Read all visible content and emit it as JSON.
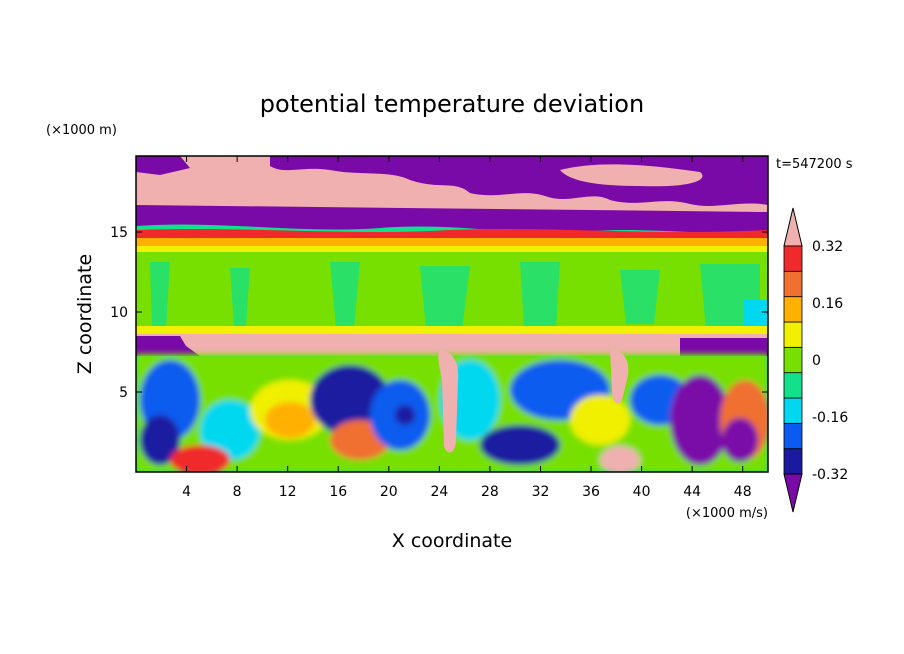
{
  "chart_data": {
    "type": "heatmap",
    "title": "potential temperature deviation",
    "xlabel": "X coordinate",
    "ylabel": "Z coordinate",
    "x_unit": "(×1000 m/s)",
    "y_unit": "(×1000 m)",
    "time_label": "t=547200 s",
    "xlim": [
      0,
      50
    ],
    "ylim": [
      0,
      19.75
    ],
    "x_ticks": [
      4,
      8,
      12,
      16,
      20,
      24,
      28,
      32,
      36,
      40,
      44,
      48
    ],
    "y_ticks": [
      5,
      10,
      15
    ],
    "colorbar": {
      "levels": [
        -0.4,
        -0.32,
        -0.24,
        -0.16,
        -0.08,
        0,
        0.08,
        0.16,
        0.24,
        0.32,
        0.4
      ],
      "labels": [
        "-0.32",
        "-0.16",
        "0",
        "0.16",
        "0.32"
      ],
      "label_values": [
        -0.32,
        -0.16,
        0,
        0.16,
        0.32
      ],
      "colors": [
        "#7a0aa8",
        "#1a1aa0",
        "#0b5bf0",
        "#00d8f0",
        "#12e08a",
        "#78e000",
        "#f0f000",
        "#ffb000",
        "#f07030",
        "#f02a2a",
        "#f0b0b0"
      ],
      "extend": "both"
    },
    "regions": [
      {
        "desc": "upper layer",
        "z": [
          15.2,
          19.75
        ],
        "value": 0.45
      },
      {
        "desc": "band",
        "z": [
          13.5,
          15.2
        ],
        "value": 0.3
      },
      {
        "desc": "stratified layer",
        "z": [
          8.8,
          13.5
        ],
        "value": 0.04
      },
      {
        "desc": "inversion",
        "z": [
          7.2,
          8.8
        ],
        "value": 0.45
      },
      {
        "desc": "mixed layer",
        "z": [
          0,
          7.2
        ],
        "value": -0.1
      }
    ]
  }
}
